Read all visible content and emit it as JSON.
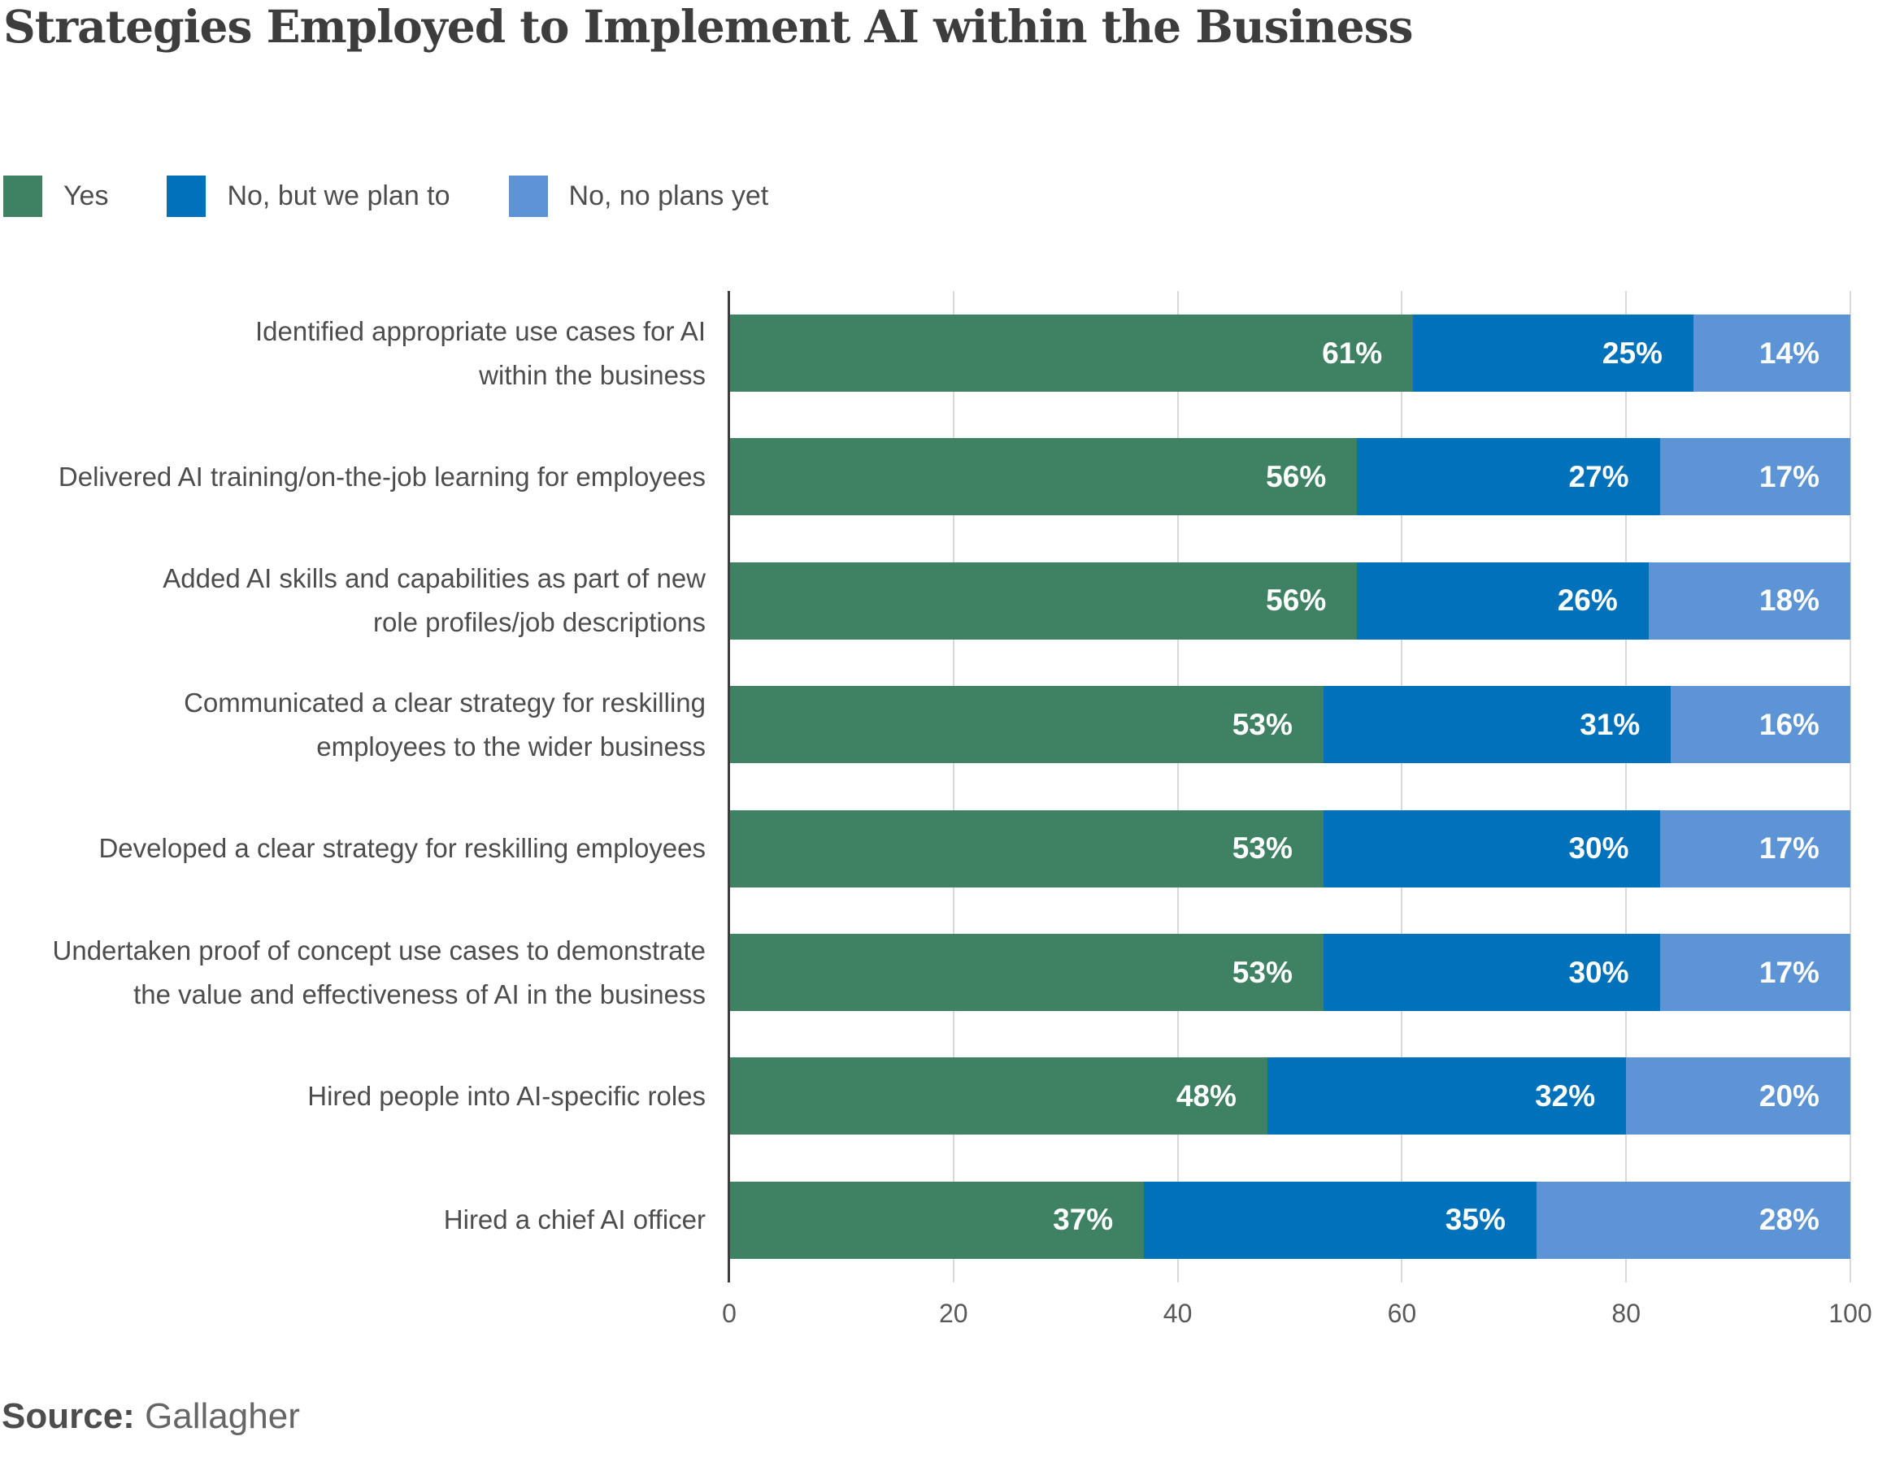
{
  "title": "Strategies Employed to Implement AI within the Business",
  "legend": [
    {
      "label": "Yes",
      "color": "#3e8163"
    },
    {
      "label": "No, but we plan to",
      "color": "#0072bc"
    },
    {
      "label": "No, no plans yet",
      "color": "#5d94d6"
    }
  ],
  "source": {
    "label": "Source:",
    "value": "Gallagher"
  },
  "chart_data": {
    "type": "bar",
    "stacked": true,
    "orientation": "horizontal",
    "title": "Strategies Employed to Implement AI within the Business",
    "categories": [
      "Identified appropriate use cases for AI within the business",
      "Delivered AI training/on-the-job learning for employees",
      "Added AI skills and capabilities as part of new role profiles/job descriptions",
      "Communicated a clear strategy for reskilling employees to the wider business",
      "Developed a clear strategy for reskilling employees",
      "Undertaken proof of concept use cases to demonstrate the value and effectiveness of AI in the business",
      "Hired people into AI-specific roles",
      "Hired a chief AI officer"
    ],
    "categories_wrapped": [
      [
        "Identified appropriate use cases for AI",
        "within the business"
      ],
      [
        "Delivered AI training/on-the-job learning for employees"
      ],
      [
        "Added AI skills and capabilities as part of new",
        "role profiles/job descriptions"
      ],
      [
        "Communicated a clear strategy for reskilling",
        "employees to the wider business"
      ],
      [
        "Developed a clear strategy for reskilling employees"
      ],
      [
        "Undertaken proof of concept use cases to demonstrate",
        "the value and effectiveness of AI in the business"
      ],
      [
        "Hired people into AI-specific roles"
      ],
      [
        "Hired a chief AI officer"
      ]
    ],
    "series": [
      {
        "name": "Yes",
        "color": "#3e8163",
        "values": [
          61,
          56,
          56,
          53,
          53,
          53,
          48,
          37
        ]
      },
      {
        "name": "No, but we plan to",
        "color": "#0072bc",
        "values": [
          25,
          27,
          26,
          31,
          30,
          30,
          32,
          35
        ]
      },
      {
        "name": "No, no plans yet",
        "color": "#5d94d6",
        "values": [
          14,
          17,
          18,
          16,
          17,
          17,
          20,
          28
        ]
      }
    ],
    "value_suffix": "%",
    "x_ticks": [
      "0",
      "20",
      "40",
      "60",
      "80",
      "100"
    ],
    "xlim": [
      0,
      100
    ],
    "grid": true,
    "legend_position": "top"
  }
}
